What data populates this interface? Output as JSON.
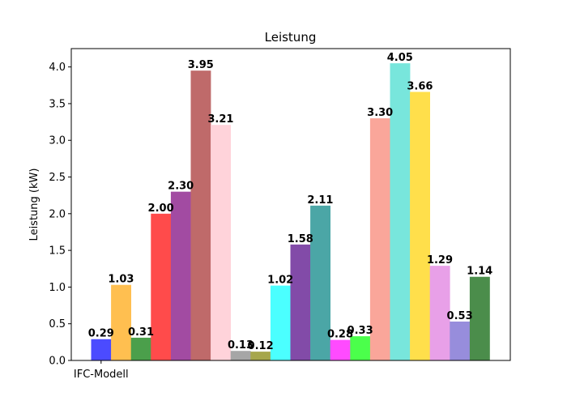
{
  "chart_data": {
    "type": "bar",
    "title": "Leistung",
    "xlabel": "",
    "ylabel": "Leistung (kW)",
    "categories": [
      "IFC-Modell"
    ],
    "ylim": [
      0,
      4.25
    ],
    "yticks": [
      "0.0",
      "0.5",
      "1.0",
      "1.5",
      "2.0",
      "2.5",
      "3.0",
      "3.5",
      "4.0"
    ],
    "grid": false,
    "legend": "none",
    "bars": [
      {
        "value": 0.29,
        "label": "0.29",
        "color": "#4b4bff"
      },
      {
        "value": 1.03,
        "label": "1.03",
        "color": "#ffbf50"
      },
      {
        "value": 0.31,
        "label": "0.31",
        "color": "#4b9f4b"
      },
      {
        "value": 2.0,
        "label": "2.00",
        "color": "#ff4b4b"
      },
      {
        "value": 2.3,
        "label": "2.30",
        "color": "#a24ba2"
      },
      {
        "value": 3.95,
        "label": "3.95",
        "color": "#bf6a6a"
      },
      {
        "value": 3.21,
        "label": "3.21",
        "color": "#ffd3da"
      },
      {
        "value": 0.13,
        "label": "0.13",
        "color": "#a6a6a6"
      },
      {
        "value": 0.12,
        "label": "0.12",
        "color": "#a6a64b"
      },
      {
        "value": 1.02,
        "label": "1.02",
        "color": "#4bffff"
      },
      {
        "value": 1.58,
        "label": "1.58",
        "color": "#824ba8"
      },
      {
        "value": 2.11,
        "label": "2.11",
        "color": "#4ba6a6"
      },
      {
        "value": 0.28,
        "label": "0.28",
        "color": "#ff4bff"
      },
      {
        "value": 0.33,
        "label": "0.33",
        "color": "#4bff4b"
      },
      {
        "value": 3.3,
        "label": "3.30",
        "color": "#faa69a"
      },
      {
        "value": 4.05,
        "label": "4.05",
        "color": "#78e6dc"
      },
      {
        "value": 3.66,
        "label": "3.66",
        "color": "#ffdf4b"
      },
      {
        "value": 1.29,
        "label": "1.29",
        "color": "#e8a0e8"
      },
      {
        "value": 0.53,
        "label": "0.53",
        "color": "#978ddc"
      },
      {
        "value": 1.14,
        "label": "1.14",
        "color": "#4b8d4b"
      }
    ]
  }
}
